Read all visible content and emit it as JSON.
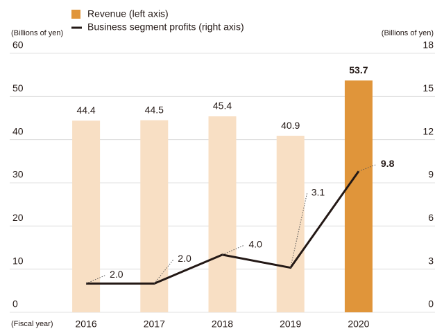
{
  "chart_data": {
    "type": "bar-line",
    "y_label": "(Billions of yen)",
    "y2_label": "(Billions of yen)",
    "x_label": "(Fiscal year)",
    "categories": [
      "2016",
      "2017",
      "2018",
      "2019",
      "2020"
    ],
    "series": [
      {
        "name": "Revenue (left axis)",
        "type": "bar",
        "color": "#e0953a",
        "colors": [
          "#f8dfc4",
          "#f8dfc4",
          "#f8dfc4",
          "#f8dfc4",
          "#e0953a"
        ],
        "values": [
          44.4,
          44.5,
          45.4,
          40.9,
          53.7
        ]
      },
      {
        "name": "Business segment profits (right axis)",
        "type": "line",
        "axis": "y2",
        "color": "#231815",
        "values": [
          2,
          2,
          4,
          3.1,
          9.8
        ],
        "value_labels": [
          "2.0",
          "2.0",
          "4.0",
          "3.1",
          "9.8"
        ]
      }
    ],
    "ylim": [
      0,
      60
    ],
    "yticks": [
      0,
      10,
      20,
      30,
      40,
      50,
      60
    ],
    "y2lim": [
      0,
      18
    ],
    "y2ticks": [
      0,
      3,
      6,
      9,
      12,
      15,
      18
    ],
    "grid": true
  }
}
